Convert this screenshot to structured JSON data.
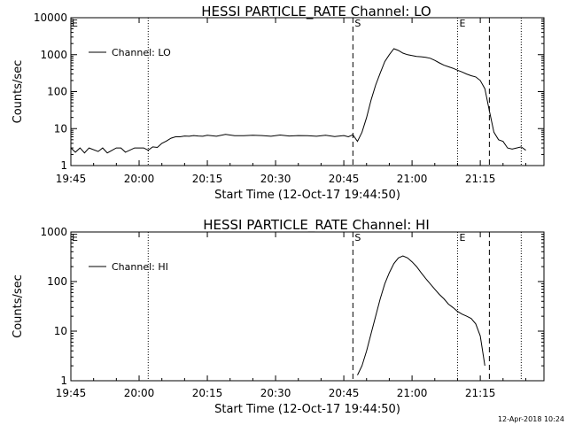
{
  "chart_data": [
    {
      "type": "line",
      "title": "HESSI PARTICLE_RATE Channel: LO",
      "xlabel": "Start Time (12-Oct-17 19:44:50)",
      "ylabel": "Counts/sec",
      "y_scale": "log",
      "x_ticks": [
        "19:45",
        "20:00",
        "20:15",
        "20:30",
        "20:45",
        "21:00",
        "21:15"
      ],
      "y_ticks": [
        "1",
        "10",
        "100",
        "1000",
        "10000"
      ],
      "xlim_min": [
        0,
        104
      ],
      "ylim": [
        1,
        10000
      ],
      "legend": "top-left",
      "grid": false,
      "series": [
        {
          "name": "Channel: LO",
          "x": [
            0,
            1,
            2,
            3,
            4,
            6,
            7,
            8,
            10,
            11,
            12,
            14,
            15,
            16,
            17,
            18,
            19,
            20,
            21,
            22,
            23,
            24,
            25,
            26,
            27,
            28,
            29,
            30,
            32,
            34,
            36,
            38,
            40,
            42,
            44,
            46,
            48,
            50,
            52,
            54,
            56,
            58,
            60,
            61,
            62,
            63,
            64,
            65,
            66,
            67,
            68,
            69,
            70,
            71,
            72,
            73,
            74,
            75,
            76,
            77,
            78,
            79,
            80,
            81,
            82,
            83,
            84,
            85,
            86,
            87,
            88,
            89,
            90,
            91,
            92,
            93,
            94,
            95,
            96,
            97,
            98,
            99,
            100
          ],
          "y": [
            3,
            2.3,
            3,
            2.2,
            3,
            2.4,
            3,
            2.2,
            3,
            3,
            2.3,
            3,
            3,
            3,
            2.6,
            3.2,
            3.1,
            4,
            4.6,
            5.5,
            6,
            6,
            6.3,
            6.2,
            6.5,
            6.3,
            6.2,
            6.6,
            6.2,
            7,
            6.4,
            6.4,
            6.6,
            6.5,
            6.2,
            6.7,
            6.3,
            6.5,
            6.4,
            6.2,
            6.6,
            6.1,
            6.5,
            6,
            6.8,
            4.5,
            8,
            20,
            60,
            150,
            320,
            650,
            1000,
            1450,
            1300,
            1100,
            1000,
            950,
            900,
            880,
            850,
            800,
            700,
            600,
            520,
            470,
            430,
            380,
            340,
            300,
            270,
            250,
            200,
            120,
            30,
            8,
            5,
            4.5,
            3,
            2.8,
            3,
            3.2,
            2.6
          ]
        }
      ],
      "markers": {
        "S": 62,
        "E": 85
      },
      "vlines_dashed": [
        62,
        92
      ],
      "vlines_dotted": [
        17,
        85,
        99
      ]
    },
    {
      "type": "line",
      "title": "HESSI PARTICLE_RATE Channel: HI",
      "xlabel": "Start Time (12-Oct-17 19:44:50)",
      "ylabel": "Counts/sec",
      "y_scale": "log",
      "x_ticks": [
        "19:45",
        "20:00",
        "20:15",
        "20:30",
        "20:45",
        "21:00",
        "21:15"
      ],
      "y_ticks": [
        "1",
        "10",
        "100",
        "1000"
      ],
      "xlim_min": [
        0,
        104
      ],
      "ylim": [
        1,
        1000
      ],
      "legend": "top-left",
      "grid": false,
      "series": [
        {
          "name": "Channel: HI",
          "x": [
            63,
            64,
            65,
            66,
            67,
            68,
            69,
            70,
            71,
            72,
            73,
            74,
            75,
            76,
            77,
            78,
            79,
            80,
            81,
            82,
            83,
            84,
            85,
            86,
            87,
            88,
            89,
            90,
            91
          ],
          "y": [
            1.3,
            2,
            4,
            9,
            20,
            45,
            90,
            150,
            230,
            300,
            330,
            300,
            250,
            200,
            150,
            115,
            90,
            70,
            55,
            45,
            35,
            30,
            25,
            22,
            20,
            18,
            14,
            8,
            2
          ]
        }
      ],
      "markers": {
        "S": 62,
        "E": 85
      },
      "vlines_dashed": [
        62,
        92
      ],
      "vlines_dotted": [
        17,
        85,
        99
      ]
    }
  ],
  "timestamp": "12-Apr-2018 10:24"
}
